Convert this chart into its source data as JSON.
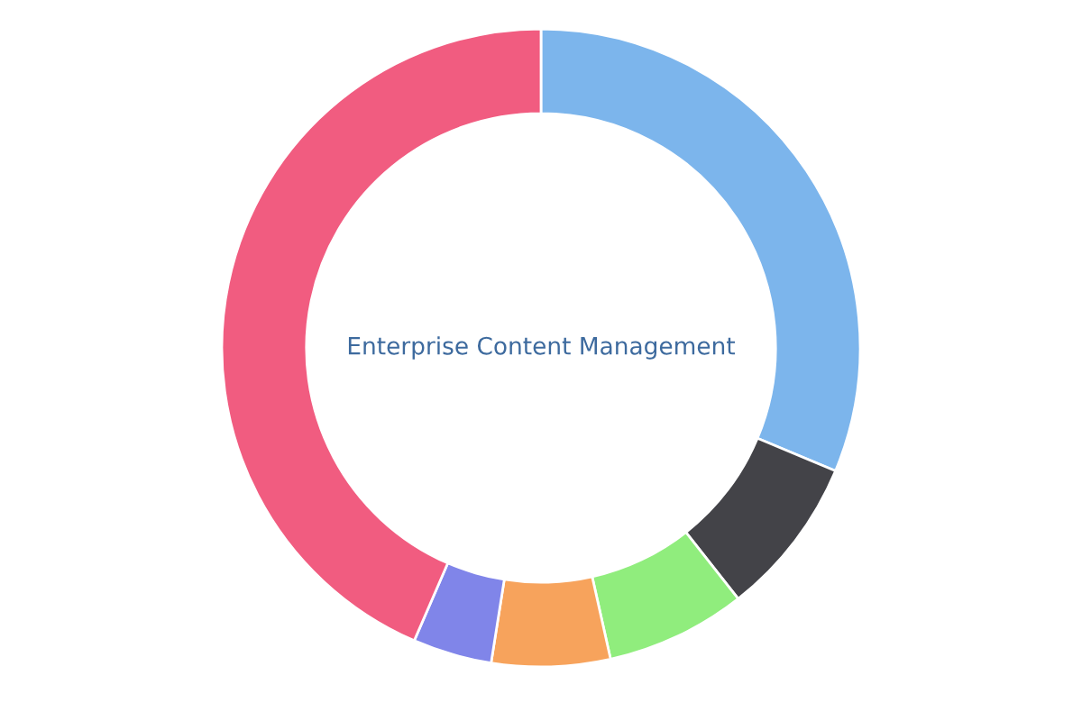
{
  "chart_data": {
    "type": "donut",
    "title": "Enterprise Content Management",
    "categories": [
      null,
      null,
      null,
      null,
      null,
      null
    ],
    "values": [
      31.3,
      8.1,
      7.1,
      6.0,
      4.0,
      43.5
    ],
    "colors": [
      "#7cb5ec",
      "#434348",
      "#90ed7d",
      "#f7a35c",
      "#8085e9",
      "#f15c80"
    ]
  }
}
